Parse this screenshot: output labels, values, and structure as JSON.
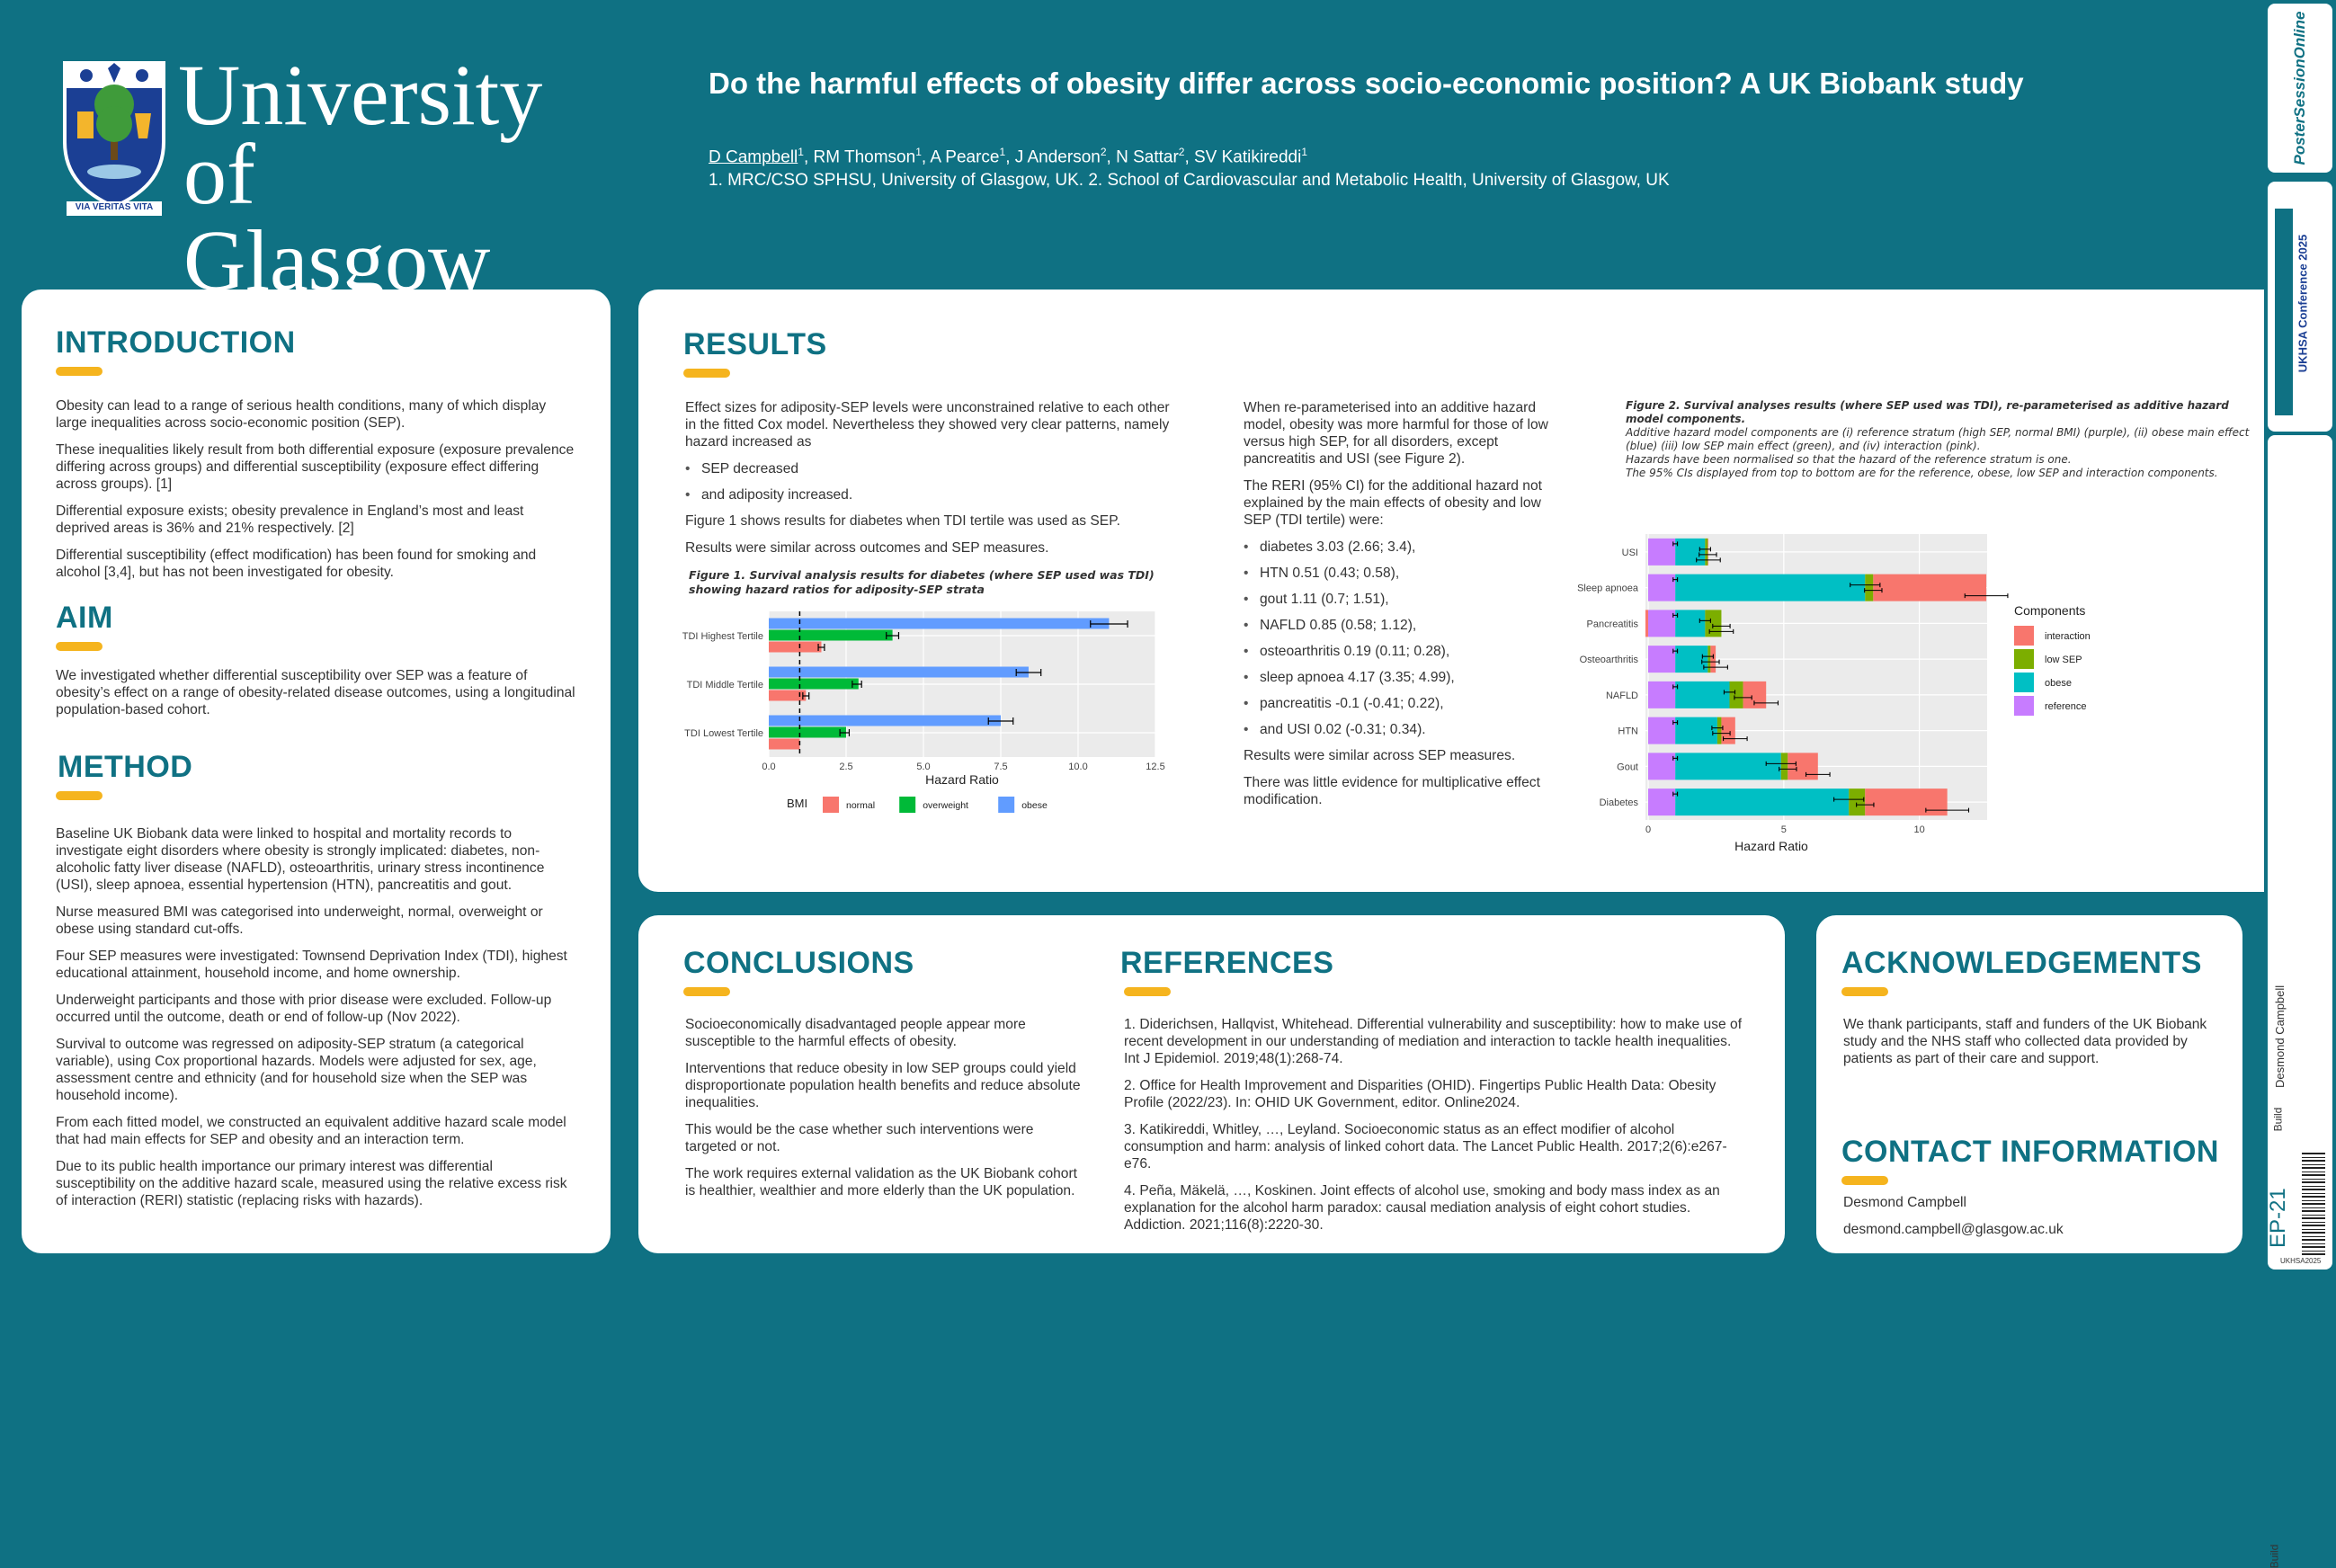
{
  "header": {
    "logo_text_line1": "University",
    "logo_text_line2": "of Glasgow",
    "motto": "VIA VERITAS VITA",
    "title": "Do the harmful effects of obesity differ across socio-economic position? A UK Biobank study",
    "authors_first": "D Campbell",
    "authors_rest": [
      {
        "sep": "",
        "sup": "1"
      },
      {
        "name": ", RM Thomson",
        "sup": "1"
      },
      {
        "name": ", A Pearce",
        "sup": "1"
      },
      {
        "name": ", J Anderson",
        "sup": "2"
      },
      {
        "name": ", N Sattar",
        "sup": "2"
      },
      {
        "name": ", SV Katikireddi",
        "sup": "1"
      }
    ],
    "affiliations": "1. MRC/CSO SPHSU, University of Glasgow, UK. 2. School of Cardiovascular and Metabolic Health, University of Glasgow, UK"
  },
  "introduction": {
    "heading": "INTRODUCTION",
    "paragraphs": [
      "Obesity can lead to a range of serious health conditions, many of which display large inequalities across socio-economic position (SEP).",
      "These inequalities likely result from both differential exposure (exposure prevalence differing across groups) and differential susceptibility (exposure effect differing across groups). [1]",
      "Differential exposure exists; obesity prevalence in England’s most and least deprived areas is 36% and 21% respectively. [2]",
      "Differential susceptibility (effect modification) has been found for smoking and alcohol [3,4], but has not been investigated for obesity."
    ]
  },
  "aim": {
    "heading": "AIM",
    "paragraphs": [
      "We investigated whether differential susceptibility over SEP was a feature of obesity’s effect on a range of obesity-related disease outcomes, using a longitudinal population-based cohort."
    ]
  },
  "method": {
    "heading": "METHOD",
    "paragraphs": [
      "Baseline UK Biobank data were linked to hospital and mortality records to investigate eight disorders where obesity is strongly implicated: diabetes, non-alcoholic fatty liver disease (NAFLD), osteoarthritis, urinary stress incontinence (USI), sleep apnoea, essential hypertension (HTN), pancreatitis and gout.",
      "Nurse measured BMI was categorised into underweight, normal, overweight or obese using standard cut-offs.",
      "Four SEP measures were investigated: Townsend Deprivation Index (TDI), highest educational attainment, household income, and home ownership.",
      "Underweight participants and those with prior disease were excluded. Follow-up occurred until the outcome, death or end of follow-up (Nov 2022).",
      "Survival to outcome was regressed on adiposity-SEP stratum (a categorical variable), using Cox proportional hazards. Models were adjusted for sex, age, assessment centre and ethnicity (and for household size when the SEP was household income).",
      "From each fitted model, we constructed an equivalent additive hazard scale model that had main effects for SEP and obesity and an interaction term.",
      "Due to its public health importance our primary interest was differential susceptibility on the additive hazard scale, measured using the relative excess risk of interaction (RERI) statistic (replacing risks with hazards)."
    ]
  },
  "results": {
    "heading": "RESULTS",
    "col1_paragraph1": "Effect sizes for adiposity-SEP levels were unconstrained relative to each other in the fitted Cox model. Nevertheless they showed very clear patterns, namely hazard increased as",
    "col1_bullets": [
      "SEP decreased",
      "and adiposity increased."
    ],
    "col1_paragraph2": "Figure 1 shows results for diabetes when TDI tertile was used as SEP.",
    "col1_paragraph3": "Results were similar across outcomes and SEP measures.",
    "fig1_caption": "Figure 1. Survival analysis results for diabetes (where SEP used was TDI) showing hazard ratios for adiposity-SEP strata",
    "col2_paragraph1": "When re-parameterised into an additive hazard model, obesity was more harmful for those of low versus high SEP, for all disorders, except pancreatitis and USI (see Figure 2).",
    "col2_paragraph2": "The RERI (95% CI) for the additional hazard not explained by the main effects of obesity and low SEP (TDI tertile) were:",
    "col2_bullets": [
      "diabetes 3.03 (2.66; 3.4),",
      "HTN 0.51 (0.43; 0.58),",
      "gout 1.11 (0.7; 1.51),",
      "NAFLD 0.85 (0.58; 1.12),",
      " osteoarthritis 0.19 (0.11; 0.28),",
      " sleep apnoea 4.17 (3.35; 4.99),",
      "pancreatitis -0.1 (-0.41; 0.22),",
      "and USI 0.02 (-0.31; 0.34)."
    ],
    "col2_paragraph3": "Results were similar across SEP measures.",
    "col2_paragraph4": "There was little evidence for multiplicative effect modification.",
    "fig2_caption_title": "Figure 2. Survival analyses results (where SEP used was TDI), re-parameterised as additive hazard model components.",
    "fig2_caption_lines": [
      "Additive hazard model components are (i) reference stratum (high SEP, normal BMI) (purple), (ii) obese main effect (blue) (iii) low SEP main effect (green), and (iv) interaction (pink).",
      "Hazards have been normalised so that the hazard of the reference stratum is one.",
      "The 95% CIs displayed from top to bottom are for the reference, obese, low SEP and interaction components."
    ]
  },
  "conclusions": {
    "heading": "CONCLUSIONS",
    "paragraphs": [
      "Socioeconomically disadvantaged people appear more susceptible to the harmful effects of obesity.",
      "Interventions that reduce obesity in low SEP groups could yield disproportionate population health benefits and reduce absolute inequalities.",
      "This would be the case whether such interventions were targeted or not.",
      "The work requires external validation as the UK Biobank cohort is healthier, wealthier and more elderly than the UK population."
    ]
  },
  "references": {
    "heading": "REFERENCES",
    "items": [
      "1. Diderichsen, Hallqvist, Whitehead. Differential vulnerability and susceptibility: how to make use of recent development in our understanding of mediation and interaction to tackle health inequalities. Int J Epidemiol. 2019;48(1):268-74.",
      "2. Office for Health Improvement and Disparities (OHID). Fingertips Public Health Data: Obesity Profile (2022/23). In: OHID UK Government, editor. Online2024.",
      "3. Katikireddi, Whitley, …, Leyland. Socioeconomic status as an effect modifier of alcohol consumption and harm: analysis of linked cohort data. The Lancet Public Health. 2017;2(6):e267-e76.",
      "4. Peña, Mäkelä, …, Koskinen. Joint effects of alcohol use, smoking and body mass index as an explanation for the alcohol harm paradox: causal mediation analysis of eight cohort studies. Addiction. 2021;116(8):2220-30."
    ]
  },
  "acknowledgements": {
    "heading": "ACKNOWLEDGEMENTS",
    "text": "We thank participants, staff and funders of the UK Biobank study and the NHS staff who collected data provided by patients as part of their care and support."
  },
  "contact": {
    "heading": "CONTACT INFORMATION",
    "name": "Desmond Campbell",
    "email": "desmond.campbell@glasgow.ac.uk"
  },
  "sidebar": {
    "brand": "PosterSessionOnline",
    "conference": "UKHSA Conference 2025",
    "build_label": "Build",
    "author": "Desmond Campbell",
    "poster_id": "EP-21",
    "footer_code": "UKHSA2025"
  },
  "chart_data": [
    {
      "type": "bar",
      "orientation": "horizontal",
      "title": "",
      "xlabel": "Hazard Ratio",
      "ylabel": "",
      "xlim": [
        0,
        12.5
      ],
      "xticks": [
        "0.0",
        "2.5",
        "5.0",
        "7.5",
        "10.0",
        "12.5"
      ],
      "reference_line": 1,
      "categories": [
        "TDI Highest Tertile",
        "TDI Middle Tertile",
        "TDI Lowest Tertile"
      ],
      "legend_title": "BMI",
      "legend_position": "bottom",
      "series": [
        {
          "name": "normal",
          "color": "#f8766d",
          "values": [
            1.7,
            1.2,
            1.0
          ],
          "ci_low": [
            1.6,
            1.1,
            null
          ],
          "ci_high": [
            1.8,
            1.3,
            null
          ]
        },
        {
          "name": "overweight",
          "color": "#00ba38",
          "values": [
            4.0,
            2.9,
            2.5
          ],
          "ci_low": [
            3.8,
            2.7,
            2.3
          ],
          "ci_high": [
            4.2,
            3.0,
            2.6
          ]
        },
        {
          "name": "obese",
          "color": "#619cff",
          "values": [
            11.0,
            8.4,
            7.5
          ],
          "ci_low": [
            10.4,
            8.0,
            7.1
          ],
          "ci_high": [
            11.6,
            8.8,
            7.9
          ]
        }
      ]
    },
    {
      "type": "bar",
      "orientation": "horizontal",
      "stacked": true,
      "title": "",
      "xlabel": "Hazard Ratio",
      "ylabel": "",
      "xlim": [
        -0.1,
        12.5
      ],
      "xticks": [
        "0",
        "5",
        "10"
      ],
      "categories": [
        "USI",
        "Sleep apnoea",
        "Pancreatitis",
        "Osteoarthritis",
        "NAFLD",
        "HTN",
        "Gout",
        "Diabetes"
      ],
      "legend_title": "Components",
      "legend_position": "right",
      "series": [
        {
          "name": "reference",
          "color": "#c77cff",
          "values": [
            1,
            1,
            1,
            1,
            1,
            1,
            1,
            1
          ]
        },
        {
          "name": "obese",
          "color": "#00bfc4",
          "values": [
            1.1,
            7.0,
            1.1,
            1.2,
            2.0,
            1.55,
            3.9,
            6.4
          ]
        },
        {
          "name": "low SEP",
          "color": "#7cae00",
          "values": [
            0.1,
            0.3,
            0.6,
            0.1,
            0.5,
            0.15,
            0.25,
            0.6
          ]
        },
        {
          "name": "interaction",
          "color": "#f8766d",
          "values": [
            0.02,
            4.17,
            -0.1,
            0.19,
            0.85,
            0.51,
            1.11,
            3.03
          ]
        }
      ]
    }
  ]
}
